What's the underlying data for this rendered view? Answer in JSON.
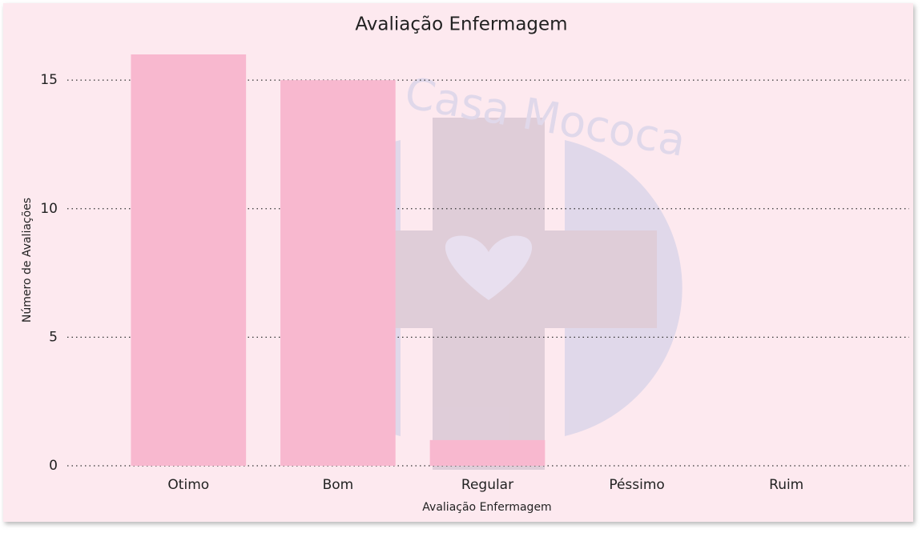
{
  "chart_data": {
    "type": "bar",
    "title": "Avaliação Enfermagem",
    "watermark": "Casa Mococa",
    "categories": [
      "Otimo",
      "Bom",
      "Regular",
      "Péssimo",
      "Ruim"
    ],
    "values": [
      16,
      15,
      1,
      0,
      0
    ],
    "color": "#f8b8cf",
    "xlabel": "Avaliação Enfermagem",
    "ylabel": "Número de Avaliações",
    "ylim": [
      0,
      16
    ],
    "yticks": [
      0,
      5,
      10,
      15
    ],
    "grid": true
  }
}
